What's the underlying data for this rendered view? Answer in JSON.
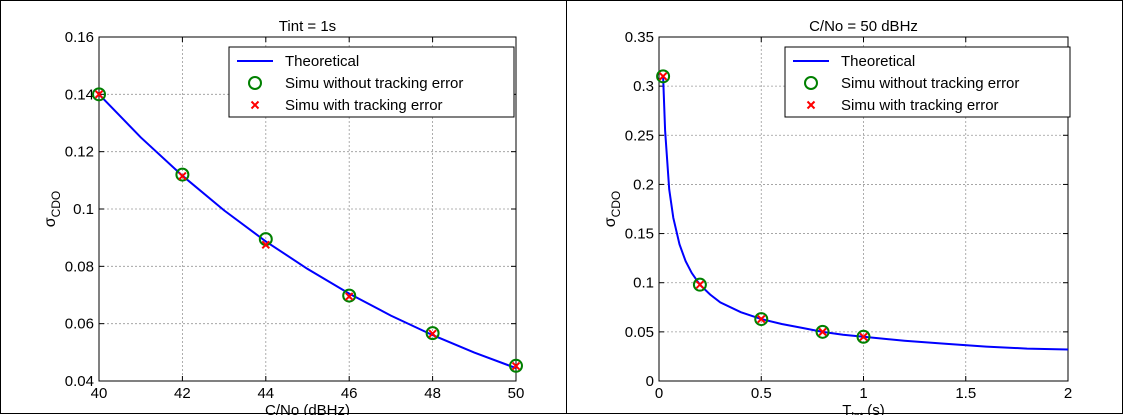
{
  "chart_data": [
    {
      "type": "line",
      "title": "Tint = 1s",
      "xlabel": "C/No (dBHz)",
      "ylabel": {
        "base": "σ",
        "sub": "CDO"
      },
      "xlim": [
        40,
        50
      ],
      "ylim": [
        0.04,
        0.16
      ],
      "xticks": [
        40,
        42,
        44,
        46,
        48,
        50
      ],
      "xtick_labels": [
        "40",
        "42",
        "44",
        "46",
        "48",
        "50"
      ],
      "yticks": [
        0.04,
        0.06,
        0.08,
        0.1,
        0.12,
        0.14,
        0.16
      ],
      "ytick_labels": [
        "0.04",
        "0.06",
        "0.08",
        "0.1",
        "0.12",
        "0.14",
        "0.16"
      ],
      "grid": true,
      "legend_position": "top-right",
      "series": [
        {
          "name": "Theoretical",
          "style": "line",
          "color": "#0000ff",
          "x": [
            40,
            41,
            42,
            43,
            44,
            45,
            46,
            47,
            48,
            49,
            50
          ],
          "y": [
            0.14,
            0.125,
            0.1116,
            0.0995,
            0.0887,
            0.0791,
            0.0705,
            0.0628,
            0.056,
            0.0499,
            0.0445
          ]
        },
        {
          "name": "Simu without tracking error",
          "style": "circle",
          "color": "#008000",
          "x": [
            40,
            42,
            44,
            46,
            48,
            50
          ],
          "y": [
            0.14,
            0.112,
            0.0895,
            0.0698,
            0.0567,
            0.0453
          ]
        },
        {
          "name": "Simu with tracking error",
          "style": "x",
          "color": "#ff0000",
          "x": [
            40,
            42,
            44,
            46,
            48,
            50
          ],
          "y": [
            0.14,
            0.1115,
            0.0875,
            0.0695,
            0.0565,
            0.0452
          ]
        }
      ]
    },
    {
      "type": "line",
      "title": "C/No = 50 dBHz",
      "xlabel": {
        "base": "T",
        "sub": "int",
        "suffix": " (s)"
      },
      "ylabel": {
        "base": "σ",
        "sub": "CDO"
      },
      "xlim": [
        0,
        2
      ],
      "ylim": [
        0,
        0.35
      ],
      "xticks": [
        0,
        0.5,
        1,
        1.5,
        2
      ],
      "xtick_labels": [
        "0",
        "0.5",
        "1",
        "1.5",
        "2"
      ],
      "yticks": [
        0,
        0.05,
        0.1,
        0.15,
        0.2,
        0.25,
        0.3,
        0.35
      ],
      "ytick_labels": [
        "0",
        "0.05",
        "0.1",
        "0.15",
        "0.2",
        "0.25",
        "0.3",
        "0.35"
      ],
      "grid": true,
      "legend_position": "top-right",
      "series": [
        {
          "name": "Theoretical",
          "style": "line",
          "color": "#0000ff",
          "x": [
            0.02,
            0.03,
            0.05,
            0.07,
            0.1,
            0.13,
            0.16,
            0.2,
            0.25,
            0.3,
            0.4,
            0.5,
            0.6,
            0.7,
            0.8,
            0.9,
            1.0,
            1.2,
            1.4,
            1.6,
            1.8,
            2.0
          ],
          "y": [
            0.31,
            0.255,
            0.195,
            0.166,
            0.139,
            0.122,
            0.11,
            0.098,
            0.088,
            0.08,
            0.07,
            0.063,
            0.058,
            0.054,
            0.05,
            0.047,
            0.045,
            0.041,
            0.038,
            0.035,
            0.033,
            0.032
          ]
        },
        {
          "name": "Simu without tracking error",
          "style": "circle",
          "color": "#008000",
          "x": [
            0.02,
            0.2,
            0.5,
            0.8,
            1.0
          ],
          "y": [
            0.31,
            0.098,
            0.063,
            0.05,
            0.045
          ]
        },
        {
          "name": "Simu with tracking error",
          "style": "x",
          "color": "#ff0000",
          "x": [
            0.02,
            0.2,
            0.5,
            0.8,
            1.0
          ],
          "y": [
            0.31,
            0.098,
            0.063,
            0.05,
            0.045
          ]
        }
      ]
    }
  ]
}
